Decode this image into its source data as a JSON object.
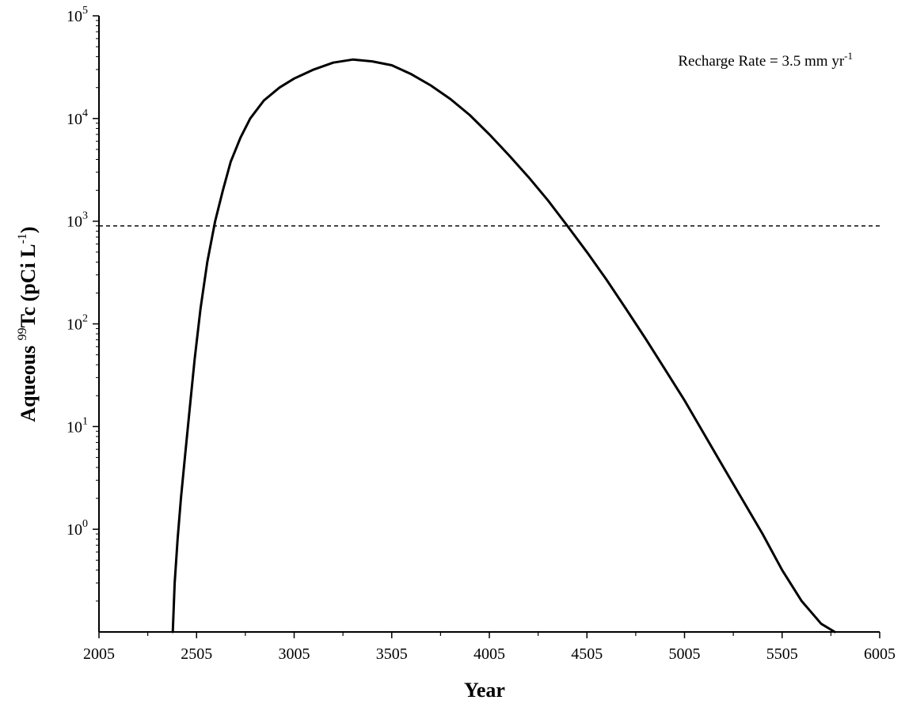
{
  "chart_data": {
    "type": "line",
    "title": "",
    "xlabel": "Year",
    "ylabel": {
      "prefix": "Aqueous ",
      "isotope_mass": "99",
      "element": "Tc (pCi L",
      "unit_exponent": "-1",
      "suffix": ")"
    },
    "xlim": [
      2005,
      6005
    ],
    "ylim": [
      0.1,
      100000
    ],
    "yscale": "log",
    "grid": false,
    "x_ticks": [
      {
        "value": 2005,
        "label": "2005"
      },
      {
        "value": 2505,
        "label": "2505"
      },
      {
        "value": 3005,
        "label": "3005"
      },
      {
        "value": 3505,
        "label": "3505"
      },
      {
        "value": 4005,
        "label": "4005"
      },
      {
        "value": 4505,
        "label": "4505"
      },
      {
        "value": 5005,
        "label": "5005"
      },
      {
        "value": 5505,
        "label": "5505"
      },
      {
        "value": 6005,
        "label": "6005"
      }
    ],
    "x_minor_step": 250,
    "y_ticks": [
      {
        "value": 1,
        "base": "10",
        "exponent": "0"
      },
      {
        "value": 10,
        "base": "10",
        "exponent": "1"
      },
      {
        "value": 100,
        "base": "10",
        "exponent": "2"
      },
      {
        "value": 1000,
        "base": "10",
        "exponent": "3"
      },
      {
        "value": 10000,
        "base": "10",
        "exponent": "4"
      },
      {
        "value": 100000,
        "base": "10",
        "exponent": "5"
      }
    ],
    "annotation": {
      "text": "Recharge Rate = 3.5 mm yr",
      "superscript": "-1",
      "position": "top-right"
    },
    "reference_line": {
      "y": 900,
      "style": "dashed"
    },
    "series": [
      {
        "color": "#000000",
        "x": [
          2383,
          2393,
          2408,
          2425,
          2445,
          2470,
          2495,
          2525,
          2560,
          2600,
          2640,
          2680,
          2730,
          2780,
          2850,
          2930,
          3005,
          3105,
          3205,
          3305,
          3405,
          3505,
          3605,
          3705,
          3805,
          3905,
          4005,
          4105,
          4205,
          4305,
          4405,
          4505,
          4605,
          4705,
          4805,
          4905,
          5005,
          5105,
          5205,
          5305,
          5405,
          5505,
          5605,
          5705,
          5775
        ],
        "y": [
          0.1,
          0.3,
          0.8,
          2,
          5,
          15,
          45,
          140,
          400,
          1000,
          2000,
          3800,
          6500,
          10000,
          15000,
          20000,
          24500,
          30000,
          35000,
          37500,
          36000,
          33000,
          27000,
          21000,
          15500,
          10800,
          7000,
          4400,
          2700,
          1600,
          900,
          500,
          270,
          140,
          72,
          36,
          18,
          8.5,
          4,
          1.9,
          0.9,
          0.4,
          0.2,
          0.12,
          0.1
        ]
      }
    ]
  }
}
